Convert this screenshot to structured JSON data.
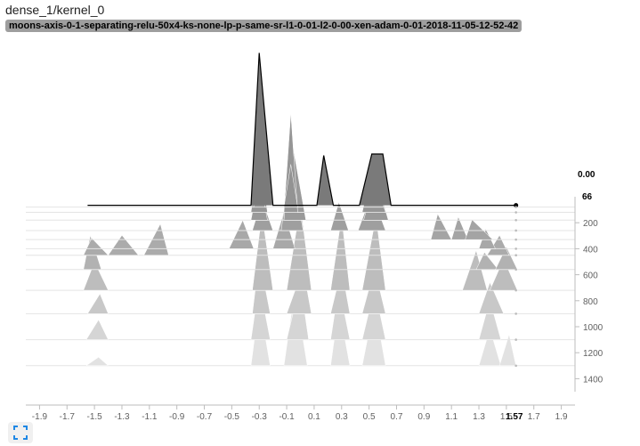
{
  "card": {
    "title": "dense_1/kernel_0",
    "run": "moons-axis-0-1-separating-relu-50x4-ks-none-lp-p-same-sr-l1-0-01-l2-0-00-xen-adam-0-01-2018-11-05-12-52-42"
  },
  "toolbar": {
    "fullscreen_icon": "fullscreen-icon"
  },
  "colors": {
    "axis": "#bdbdbd",
    "tick_text": "#616161",
    "outline": "#000000",
    "darkest_fill": "#6e6e6e",
    "lightest_fill": "#efefef"
  },
  "chart_data": {
    "type": "histogram",
    "mode": "offset",
    "title": "",
    "xlabel": "",
    "ylabel": "",
    "xlim": [
      -2.0,
      2.0
    ],
    "steps_range": [
      0,
      1500
    ],
    "x_ticks": [
      "-1.9",
      "-1.7",
      "-1.5",
      "-1.3",
      "-1.1",
      "-0.9",
      "-0.7",
      "-0.5",
      "-0.3",
      "-0.1",
      "0.1",
      "0.3",
      "0.5",
      "0.7",
      "0.9",
      "1.1",
      "1.3",
      "1.5",
      "1.7",
      "1.9"
    ],
    "step_ticks": [
      "200",
      "400",
      "600",
      "800",
      "1000",
      "1200",
      "1400"
    ],
    "hover": {
      "x": "1.57",
      "step": "66",
      "count": "0.00"
    },
    "top_slice": {
      "step": 66,
      "x": [
        -1.55,
        -0.36,
        -0.3,
        -0.2,
        -0.14,
        0.12,
        0.17,
        0.24,
        0.3,
        0.43,
        0.52,
        0.6,
        0.66,
        0.74,
        1.57
      ],
      "y": [
        0,
        0,
        10.7,
        0,
        0,
        0,
        3.5,
        0,
        0,
        0,
        3.6,
        3.6,
        0,
        0,
        0
      ]
    },
    "ridges": [
      {
        "step": 80,
        "peaks": [
          [
            -0.34,
            -0.3,
            -0.26,
            5
          ],
          [
            -0.12,
            -0.07,
            -0.02,
            3
          ]
        ]
      },
      {
        "step": 120,
        "peaks": [
          [
            -0.36,
            -0.3,
            -0.24,
            4
          ],
          [
            -0.12,
            -0.07,
            -0.02,
            7
          ],
          [
            0.45,
            0.52,
            0.62,
            3
          ]
        ]
      },
      {
        "step": 180,
        "peaks": [
          [
            -0.36,
            -0.3,
            -0.24,
            3
          ],
          [
            -0.12,
            -0.07,
            0.04,
            6
          ],
          [
            0.46,
            0.55,
            0.64,
            3
          ]
        ]
      },
      {
        "step": 260,
        "peaks": [
          [
            -0.35,
            -0.28,
            -0.2,
            2.2
          ],
          [
            -0.14,
            -0.07,
            0.02,
            5
          ],
          [
            0.22,
            0.28,
            0.35,
            2
          ],
          [
            0.42,
            0.52,
            0.62,
            2.6
          ]
        ]
      },
      {
        "step": 330,
        "peaks": [
          [
            0.95,
            1.0,
            1.1,
            1.8
          ],
          [
            1.1,
            1.15,
            1.22,
            1.6
          ],
          [
            1.2,
            1.25,
            1.4,
            1.4
          ]
        ]
      },
      {
        "step": 400,
        "peaks": [
          [
            -0.52,
            -0.42,
            -0.34,
            2
          ],
          [
            -0.2,
            -0.12,
            -0.04,
            2.6
          ],
          [
            1.3,
            1.35,
            1.42,
            1.4
          ]
        ]
      },
      {
        "step": 450,
        "peaks": [
          [
            -1.58,
            -1.52,
            -1.4,
            1.2
          ],
          [
            -1.4,
            -1.3,
            -1.18,
            1.4
          ],
          [
            -1.14,
            -1.02,
            -0.96,
            2.2
          ],
          [
            1.36,
            1.45,
            1.52,
            1.4
          ]
        ]
      },
      {
        "step": 560,
        "peaks": [
          [
            -1.58,
            -1.53,
            -1.45,
            2.4
          ],
          [
            1.28,
            1.34,
            1.44,
            1.2
          ],
          [
            1.42,
            1.5,
            1.58,
            1.6
          ]
        ]
      },
      {
        "step": 720,
        "peaks": [
          [
            -1.58,
            -1.5,
            -1.4,
            2
          ],
          [
            -0.35,
            -0.28,
            -0.2,
            5.4
          ],
          [
            -0.1,
            0.0,
            0.08,
            6
          ],
          [
            0.22,
            0.3,
            0.36,
            5.2
          ],
          [
            0.45,
            0.55,
            0.62,
            5.2
          ],
          [
            1.18,
            1.28,
            1.36,
            2.8
          ],
          [
            1.38,
            1.48,
            1.58,
            2.2
          ]
        ]
      },
      {
        "step": 900,
        "peaks": [
          [
            -1.55,
            -1.46,
            -1.4,
            1.4
          ],
          [
            -0.35,
            -0.3,
            -0.22,
            4
          ],
          [
            -0.1,
            0.02,
            0.08,
            3.2
          ],
          [
            0.22,
            0.3,
            0.36,
            3.2
          ],
          [
            0.45,
            0.54,
            0.62,
            3.2
          ],
          [
            1.3,
            1.38,
            1.48,
            2.2
          ]
        ]
      },
      {
        "step": 1100,
        "peaks": [
          [
            -1.56,
            -1.47,
            -1.4,
            1.4
          ],
          [
            -0.36,
            -0.3,
            -0.22,
            4
          ],
          [
            -0.1,
            0.0,
            0.06,
            4
          ],
          [
            0.22,
            0.28,
            0.36,
            3.8
          ],
          [
            0.45,
            0.54,
            0.62,
            3.6
          ],
          [
            1.3,
            1.38,
            1.46,
            2.8
          ]
        ]
      },
      {
        "step": 1300,
        "peaks": [
          [
            -1.56,
            -1.47,
            -1.4,
            0.6
          ],
          [
            -0.36,
            -0.3,
            -0.22,
            4.5
          ],
          [
            -0.12,
            -0.04,
            0.05,
            5.4
          ],
          [
            0.22,
            0.28,
            0.36,
            4.2
          ],
          [
            0.45,
            0.54,
            0.62,
            4.4
          ],
          [
            1.3,
            1.38,
            1.46,
            2.6
          ],
          [
            1.45,
            1.52,
            1.57,
            2.2
          ]
        ]
      }
    ]
  }
}
